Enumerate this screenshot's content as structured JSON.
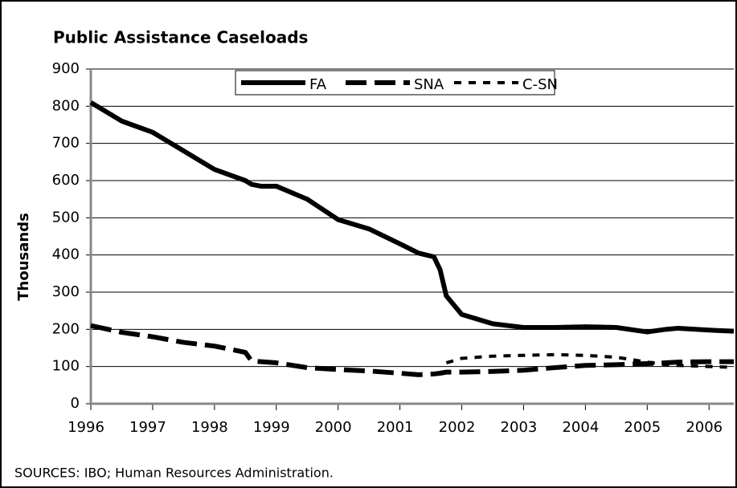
{
  "chart_data": {
    "type": "line",
    "title": "Public Assistance Caseloads",
    "ylabel": "Thousands",
    "source": "SOURCES: IBO; Human Resources Administration.",
    "x": [
      1996,
      1996.5,
      1997,
      1997.5,
      1998,
      1998.5,
      1998.6,
      1998.75,
      1999,
      1999.5,
      2000,
      2000.5,
      2001,
      2001.3,
      2001.55,
      2001.65,
      2001.75,
      2002,
      2002.5,
      2003,
      2003.5,
      2004,
      2004.5,
      2005,
      2005.3,
      2005.5,
      2006,
      2006.4
    ],
    "series": [
      {
        "name": "FA",
        "color": "#000000",
        "dash": "solid",
        "values": [
          810,
          760,
          730,
          680,
          630,
          600,
          590,
          585,
          585,
          550,
          495,
          470,
          430,
          405,
          395,
          360,
          290,
          240,
          215,
          205,
          205,
          207,
          205,
          193,
          200,
          203,
          198,
          195
        ]
      },
      {
        "name": "SNA",
        "color": "#000000",
        "dash": "long",
        "values": [
          210,
          192,
          180,
          165,
          155,
          138,
          115,
          113,
          110,
          97,
          92,
          88,
          82,
          78,
          80,
          82,
          85,
          85,
          87,
          90,
          97,
          103,
          105,
          108,
          110,
          112,
          113,
          113
        ]
      },
      {
        "name": "C-SN",
        "color": "#000000",
        "dash": "short",
        "values": [
          null,
          null,
          null,
          null,
          null,
          null,
          null,
          null,
          null,
          null,
          null,
          null,
          null,
          null,
          null,
          null,
          110,
          122,
          128,
          130,
          132,
          130,
          125,
          112,
          105,
          103,
          100,
          98
        ]
      }
    ],
    "xlim": [
      1996,
      2006.4
    ],
    "xticks": [
      1996,
      1997,
      1998,
      1999,
      2000,
      2001,
      2002,
      2003,
      2004,
      2005,
      2006
    ],
    "ylim": [
      0,
      900
    ],
    "yticks": [
      0,
      100,
      200,
      300,
      400,
      500,
      600,
      700,
      800,
      900
    ],
    "grid": true
  }
}
